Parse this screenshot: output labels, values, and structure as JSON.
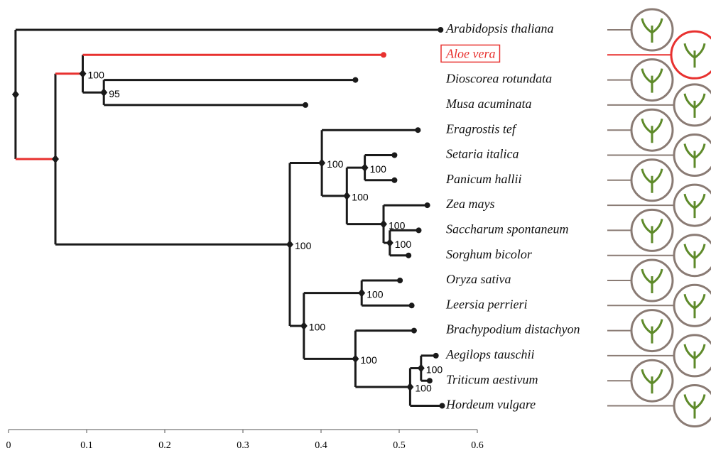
{
  "tree": {
    "x": 0.009,
    "children": [
      {
        "label": "Arabidopsis thaliana",
        "x": 0.553
      },
      {
        "x": 0.06,
        "children": [
          {
            "x": 0.095,
            "support": 100,
            "children": [
              {
                "label": "Aloe vera",
                "x": 0.48,
                "highlight": true
              },
              {
                "x": 0.122,
                "support": 95,
                "children": [
                  {
                    "label": "Dioscorea rotundata",
                    "x": 0.444
                  },
                  {
                    "label": "Musa acuminata",
                    "x": 0.38
                  }
                ]
              }
            ]
          },
          {
            "x": 0.36,
            "support": 100,
            "children": [
              {
                "x": 0.401,
                "support": 100,
                "children": [
                  {
                    "label": "Eragrostis tef",
                    "x": 0.524
                  },
                  {
                    "x": 0.433,
                    "support": 100,
                    "children": [
                      {
                        "x": 0.456,
                        "support": 100,
                        "children": [
                          {
                            "label": "Setaria italica",
                            "x": 0.494
                          },
                          {
                            "label": "Panicum hallii",
                            "x": 0.494
                          }
                        ]
                      },
                      {
                        "x": 0.48,
                        "support": 100,
                        "children": [
                          {
                            "label": "Zea mays",
                            "x": 0.536
                          },
                          {
                            "x": 0.488,
                            "support": 100,
                            "children": [
                              {
                                "label": "Saccharum spontaneum",
                                "x": 0.525
                              },
                              {
                                "label": "Sorghum bicolor",
                                "x": 0.512
                              }
                            ]
                          }
                        ]
                      }
                    ]
                  }
                ]
              },
              {
                "x": 0.378,
                "support": 100,
                "children": [
                  {
                    "x": 0.452,
                    "support": 100,
                    "children": [
                      {
                        "label": "Oryza sativa",
                        "x": 0.501
                      },
                      {
                        "label": "Leersia perrieri",
                        "x": 0.516
                      }
                    ]
                  },
                  {
                    "x": 0.444,
                    "support": 100,
                    "children": [
                      {
                        "label": "Brachypodium distachyon",
                        "x": 0.519
                      },
                      {
                        "x": 0.514,
                        "support": 100,
                        "children": [
                          {
                            "x": 0.528,
                            "support": 100,
                            "children": [
                              {
                                "label": "Aegilops tauschii",
                                "x": 0.547
                              },
                              {
                                "label": "Triticum aestivum",
                                "x": 0.539
                              }
                            ]
                          },
                          {
                            "label": "Hordeum vulgare",
                            "x": 0.555
                          }
                        ]
                      }
                    ]
                  }
                ]
              }
            ]
          }
        ]
      }
    ]
  },
  "branch_color": "#1a1a1a",
  "highlight_color": "#e8312f",
  "axis": {
    "xlim": [
      0,
      0.6
    ],
    "xticks": [
      0,
      0.1,
      0.2,
      0.3,
      0.4,
      0.5,
      0.6
    ]
  }
}
